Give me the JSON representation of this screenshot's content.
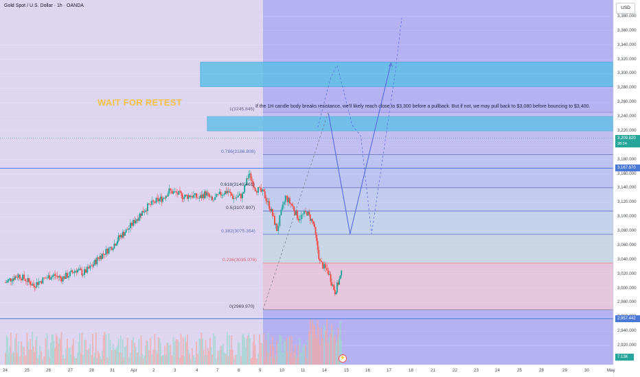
{
  "header": {
    "symbol_title": "Gold Spot / U.S. Dollar · 1h · OANDA"
  },
  "toolbar": {
    "currency": "USD"
  },
  "annotations": {
    "wait_label": "WAIT FOR RETEST",
    "note": "If the 1H candle body breaks resistance, we'll likely reach close to $3,300 before a pullback. But if not, we may pull back to $3,080 before bouncing to $3,400."
  },
  "price_tags": {
    "current": "3,209.820",
    "countdown": "38:24",
    "resistance_line": "3,167.870",
    "support_line": "2,957.442",
    "volume": "7.13K"
  },
  "colors": {
    "up": "#26a69a",
    "down": "#ef5350",
    "fib_zone": "#c9b9e8",
    "resistance_box": "#5fbfe6",
    "red_zone": "#f7c9cf",
    "path_blue": "#5b6fe0",
    "highlight_bg": "#a9a5ef",
    "left_bg": "#ded6f1",
    "wait_text": "#f6c244"
  },
  "chart_data": {
    "type": "candlestick",
    "symbol": "XAUUSD",
    "timeframe": "1h",
    "y_axis": {
      "ticks": [
        "3,380.000",
        "3,360.000",
        "3,340.000",
        "3,320.000",
        "3,300.000",
        "3,280.000",
        "3,260.000",
        "3,240.000",
        "3,220.000",
        "3,200.000",
        "3,180.000",
        "3,160.000",
        "3,140.000",
        "3,120.000",
        "3,100.000",
        "3,080.000",
        "3,060.000",
        "3,040.000",
        "3,020.000",
        "3,000.000",
        "2,980.000",
        "2,960.000",
        "2,940.000",
        "2,920.000"
      ],
      "ylim": [
        2902,
        3392
      ]
    },
    "x_axis": {
      "ticks": [
        "24",
        "25",
        "26",
        "27",
        "28",
        "31",
        "Apr",
        "2",
        "3",
        "4",
        "7",
        "8",
        "9",
        "10",
        "11",
        "14",
        "15",
        "16",
        "17",
        "18",
        "21",
        "22",
        "23",
        "24",
        "25",
        "28",
        "29",
        "30",
        "May"
      ]
    },
    "key_prices": {
      "current": 3209.82,
      "resistance_line": 3167.87,
      "support_line": 2957.44
    },
    "fibonacci": [
      {
        "ratio": "1",
        "price": 3245.845,
        "label": "1(3245.845)"
      },
      {
        "ratio": "0.786",
        "price": 3186.808,
        "label": "0.786(3186.808)"
      },
      {
        "ratio": "0.618",
        "price": 3140.461,
        "label": "0.618(3140.461)"
      },
      {
        "ratio": "0.5",
        "price": 3107.907,
        "label": "0.5(3107.907)"
      },
      {
        "ratio": "0.382",
        "price": 3075.354,
        "label": "0.382(3075.354)"
      },
      {
        "ratio": "0.236",
        "price": 3035.076,
        "label": "0.236(3035.076)"
      },
      {
        "ratio": "0",
        "price": 2969.97,
        "label": "0(2969.970)"
      }
    ],
    "zones": [
      {
        "name": "upper-resistance-zone",
        "from": 3282,
        "to": 3316
      },
      {
        "name": "breakout-resistance-zone",
        "from": 3220,
        "to": 3240
      }
    ],
    "projection_scenario_a": [
      {
        "x": 15.0,
        "y": 3244
      },
      {
        "x": 16.0,
        "y": 3076
      },
      {
        "x": 17.9,
        "y": 3315
      }
    ],
    "projection_scenario_b": [
      {
        "x": 14.5,
        "y": 3225
      },
      {
        "x": 15.1,
        "y": 3294
      },
      {
        "x": 15.4,
        "y": 3312
      },
      {
        "x": 16.1,
        "y": 3228
      },
      {
        "x": 16.5,
        "y": 3213
      },
      {
        "x": 17.0,
        "y": 3076
      },
      {
        "x": 18.1,
        "y": 3302
      },
      {
        "x": 18.4,
        "y": 3378
      }
    ],
    "price_path": [
      [
        0.0,
        3008
      ],
      [
        0.3,
        3014
      ],
      [
        0.6,
        3018
      ],
      [
        1.0,
        3011
      ],
      [
        1.3,
        3004
      ],
      [
        1.6,
        3010
      ],
      [
        2.0,
        3016
      ],
      [
        2.3,
        3018
      ],
      [
        2.6,
        3014
      ],
      [
        3.0,
        3020
      ],
      [
        3.3,
        3026
      ],
      [
        3.6,
        3021
      ],
      [
        4.0,
        3030
      ],
      [
        4.3,
        3042
      ],
      [
        4.6,
        3050
      ],
      [
        5.0,
        3060
      ],
      [
        5.3,
        3072
      ],
      [
        5.6,
        3080
      ],
      [
        6.0,
        3094
      ],
      [
        6.3,
        3105
      ],
      [
        6.6,
        3114
      ],
      [
        7.0,
        3122
      ],
      [
        7.3,
        3126
      ],
      [
        7.6,
        3136
      ],
      [
        8.0,
        3132
      ],
      [
        8.3,
        3128
      ],
      [
        8.6,
        3130
      ],
      [
        9.0,
        3126
      ],
      [
        9.3,
        3133
      ],
      [
        9.6,
        3122
      ],
      [
        10.0,
        3132
      ],
      [
        10.3,
        3136
      ],
      [
        10.6,
        3126
      ],
      [
        11.0,
        3130
      ],
      [
        11.3,
        3160
      ],
      [
        11.6,
        3140
      ],
      [
        12.0,
        3132
      ],
      [
        12.3,
        3112
      ],
      [
        12.6,
        3082
      ],
      [
        13.0,
        3128
      ],
      [
        13.3,
        3116
      ],
      [
        13.6,
        3098
      ],
      [
        14.0,
        3106
      ],
      [
        14.3,
        3090
      ],
      [
        14.6,
        3036
      ],
      [
        15.0,
        3022
      ],
      [
        15.3,
        2995
      ],
      [
        15.6,
        3020
      ],
      [
        16.0,
        2985
      ],
      [
        16.3,
        2992
      ],
      [
        16.6,
        3002
      ],
      [
        17.0,
        2996
      ],
      [
        17.3,
        3015
      ],
      [
        17.6,
        3020
      ],
      [
        18.0,
        3002
      ],
      [
        18.3,
        2980
      ],
      [
        18.6,
        2978
      ],
      [
        19.0,
        3018
      ],
      [
        19.3,
        3048
      ],
      [
        19.6,
        3085
      ],
      [
        20.0,
        3092
      ],
      [
        20.3,
        3106
      ],
      [
        20.6,
        3120
      ],
      [
        21.0,
        3112
      ],
      [
        21.3,
        3140
      ],
      [
        21.6,
        3168
      ],
      [
        22.0,
        3190
      ],
      [
        22.3,
        3212
      ],
      [
        22.6,
        3228
      ],
      [
        23.0,
        3214
      ],
      [
        23.3,
        3226
      ],
      [
        23.6,
        3238
      ],
      [
        24.0,
        3230
      ],
      [
        24.3,
        3218
      ],
      [
        24.6,
        3215
      ],
      [
        25.0,
        3206
      ],
      [
        25.3,
        3210
      ]
    ]
  }
}
